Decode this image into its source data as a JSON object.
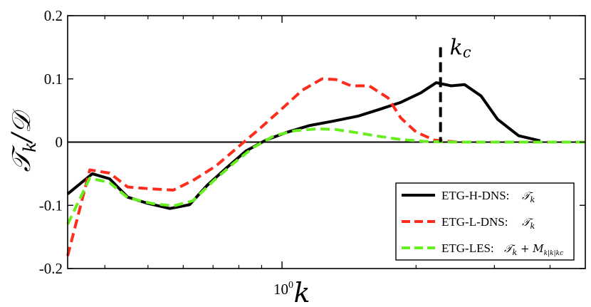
{
  "chart_data": {
    "type": "line",
    "xscale": "log",
    "xlim": [
      0.33,
      4.8
    ],
    "ylim": [
      -0.2,
      0.2
    ],
    "yticks": [
      {
        "value": 0.2,
        "label": "0.2"
      },
      {
        "value": 0.1,
        "label": "0.1"
      },
      {
        "value": 0,
        "label": "0"
      },
      {
        "value": -0.1,
        "label": "-0.1"
      },
      {
        "value": -0.2,
        "label": "-0.2"
      }
    ],
    "xticks": [
      {
        "value": 1.0,
        "base": "10",
        "exp": "0"
      }
    ],
    "minor_xticks": [
      0.4,
      0.5,
      0.6,
      0.7,
      0.8,
      0.9,
      2,
      3,
      4
    ],
    "xlabel": "k",
    "ylabel": "𝒯k/𝒟",
    "ylabel_main": "𝒯",
    "ylabel_sub": "k",
    "ylabel_rest": "/𝒟",
    "zero_line": true,
    "vline": {
      "x": 2.27,
      "y_from": 0,
      "y_to": 0.15,
      "label": "k",
      "label_sub": "c"
    },
    "series": [
      {
        "name": "ETG-H-DNS",
        "color": "#000000",
        "dash": "solid",
        "points": [
          [
            0.33,
            -0.082
          ],
          [
            0.375,
            -0.05
          ],
          [
            0.41,
            -0.058
          ],
          [
            0.45,
            -0.087
          ],
          [
            0.5,
            -0.097
          ],
          [
            0.56,
            -0.105
          ],
          [
            0.62,
            -0.099
          ],
          [
            0.68,
            -0.068
          ],
          [
            0.75,
            -0.041
          ],
          [
            0.83,
            -0.014
          ],
          [
            0.92,
            0.003
          ],
          [
            1.02,
            0.015
          ],
          [
            1.15,
            0.026
          ],
          [
            1.3,
            0.033
          ],
          [
            1.48,
            0.041
          ],
          [
            1.66,
            0.052
          ],
          [
            1.85,
            0.063
          ],
          [
            2.05,
            0.078
          ],
          [
            2.22,
            0.094
          ],
          [
            2.4,
            0.089
          ],
          [
            2.57,
            0.091
          ],
          [
            2.8,
            0.073
          ],
          [
            3.05,
            0.036
          ],
          [
            3.4,
            0.01
          ],
          [
            3.8,
            0.002
          ]
        ]
      },
      {
        "name": "ETG-L-DNS",
        "color": "#ff2b1c",
        "dash": "dashed",
        "points": [
          [
            0.33,
            -0.18
          ],
          [
            0.37,
            -0.044
          ],
          [
            0.41,
            -0.049
          ],
          [
            0.45,
            -0.071
          ],
          [
            0.51,
            -0.074
          ],
          [
            0.57,
            -0.076
          ],
          [
            0.63,
            -0.061
          ],
          [
            0.71,
            -0.038
          ],
          [
            0.79,
            -0.01
          ],
          [
            0.89,
            0.021
          ],
          [
            0.99,
            0.05
          ],
          [
            1.11,
            0.082
          ],
          [
            1.23,
            0.1
          ],
          [
            1.32,
            0.099
          ],
          [
            1.43,
            0.089
          ],
          [
            1.57,
            0.089
          ],
          [
            1.73,
            0.07
          ],
          [
            1.85,
            0.038
          ],
          [
            2.0,
            0.016
          ],
          [
            2.2,
            0.003
          ],
          [
            2.5,
            0.0
          ],
          [
            3.0,
            0.0
          ],
          [
            3.6,
            0.0
          ],
          [
            4.2,
            0.0
          ],
          [
            4.8,
            0.0
          ]
        ]
      },
      {
        "name": "ETG-LES",
        "color": "#66ee1e",
        "dash": "dashed",
        "points": [
          [
            0.33,
            -0.13
          ],
          [
            0.37,
            -0.057
          ],
          [
            0.41,
            -0.064
          ],
          [
            0.45,
            -0.088
          ],
          [
            0.51,
            -0.097
          ],
          [
            0.57,
            -0.101
          ],
          [
            0.63,
            -0.093
          ],
          [
            0.7,
            -0.062
          ],
          [
            0.78,
            -0.033
          ],
          [
            0.86,
            -0.009
          ],
          [
            0.96,
            0.01
          ],
          [
            1.07,
            0.018
          ],
          [
            1.2,
            0.021
          ],
          [
            1.32,
            0.02
          ],
          [
            1.47,
            0.015
          ],
          [
            1.62,
            0.01
          ],
          [
            1.85,
            0.004
          ],
          [
            2.1,
            0.001
          ],
          [
            2.5,
            0.0
          ],
          [
            3.0,
            0.0
          ],
          [
            3.6,
            0.0
          ],
          [
            4.2,
            0.0
          ],
          [
            4.8,
            0.0
          ]
        ]
      }
    ],
    "legend": [
      {
        "name": "ETG-H-DNS:",
        "expr": "𝒯",
        "expr_sub": "k",
        "extra": "",
        "extra_sub": "",
        "color": "#000000",
        "dash": "solid"
      },
      {
        "name": "ETG-L-DNS:",
        "expr": "𝒯",
        "expr_sub": "k",
        "extra": "",
        "extra_sub": "",
        "color": "#ff2b1c",
        "dash": "dashed"
      },
      {
        "name": "ETG-LES:",
        "expr": "𝒯",
        "expr_sub": "k",
        "extra": "+ M",
        "extra_sub": "k|k|kc",
        "color": "#66ee1e",
        "dash": "dashed"
      }
    ],
    "legend_position": "bottom-right"
  }
}
